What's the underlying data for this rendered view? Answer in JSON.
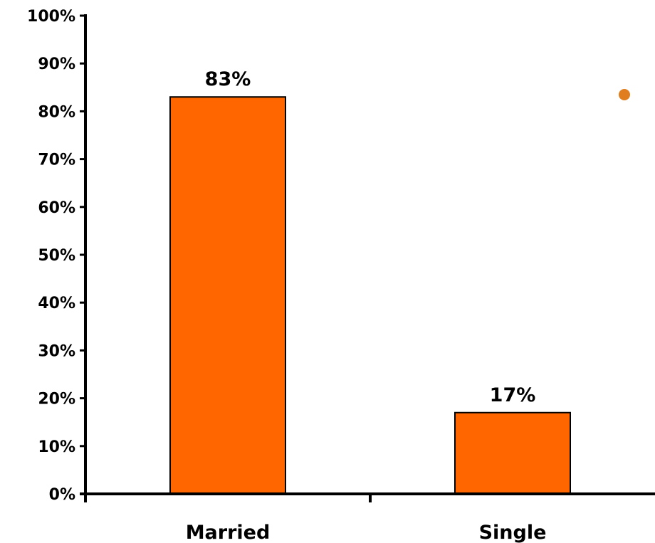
{
  "chart_data": {
    "type": "bar",
    "categories": [
      "Married",
      "Single"
    ],
    "values": [
      83,
      17
    ],
    "data_labels": [
      "83%",
      "17%"
    ],
    "y_ticks": [
      0,
      10,
      20,
      30,
      40,
      50,
      60,
      70,
      80,
      90,
      100
    ],
    "y_tick_labels": [
      "0%",
      "10%",
      "20%",
      "30%",
      "40%",
      "50%",
      "60%",
      "70%",
      "80%",
      "90%",
      "100%"
    ],
    "ylim": [
      0,
      100
    ],
    "title": "",
    "xlabel": "",
    "ylabel": "",
    "grid": false,
    "legend": "top-right, marker only (no text)",
    "colors": {
      "bar_fill": "#FF6600",
      "bar_stroke": "#000000",
      "axis": "#000000",
      "legend_marker": "#E07D1F"
    }
  }
}
